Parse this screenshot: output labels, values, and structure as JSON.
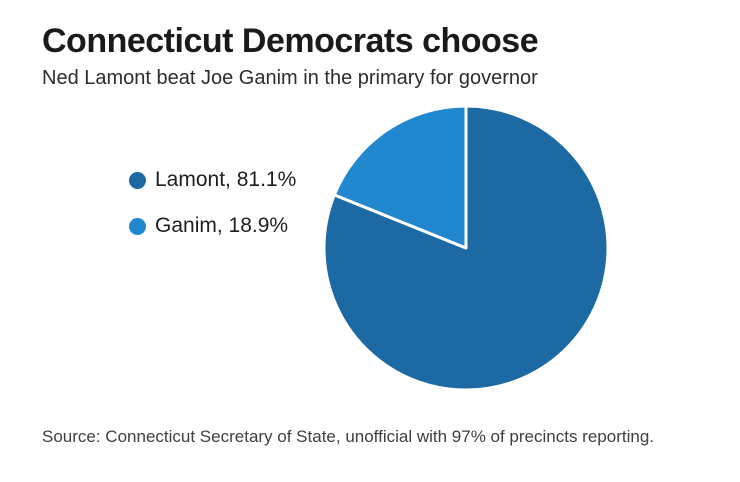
{
  "chart_data": {
    "type": "pie",
    "title": "Connecticut Democrats choose",
    "subtitle": "Ned Lamont beat Joe Ganim in the primary for governor",
    "source_note": "Source: Connecticut Secretary of State, unofficial with 97% of precincts reporting.",
    "categories": [
      "Lamont",
      "Ganim"
    ],
    "values": [
      81.1,
      18.9
    ],
    "unit": "%",
    "series": [
      {
        "name": "Lamont",
        "value": 81.1,
        "label": "Lamont, 81.1%",
        "color": "#1c69a4"
      },
      {
        "name": "Ganim",
        "value": 18.9,
        "label": "Ganim, 18.9%",
        "color": "#2188d0"
      }
    ],
    "start_angle_deg": 0,
    "direction": "clockwise",
    "slice_border_color": "#ffffff",
    "slice_border_width": 3,
    "legend_position": "left",
    "grid": false
  }
}
